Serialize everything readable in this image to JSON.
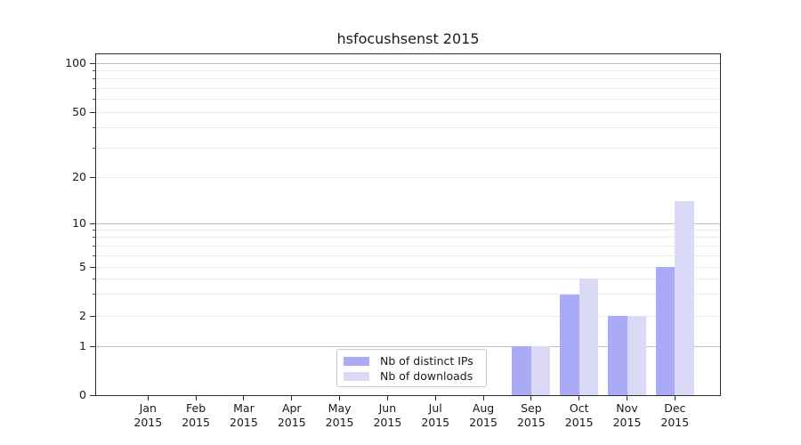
{
  "chart_data": {
    "type": "bar",
    "title": "hsfocushsenst 2015",
    "categories": [
      "Jan",
      "Feb",
      "Mar",
      "Apr",
      "May",
      "Jun",
      "Jul",
      "Aug",
      "Sep",
      "Oct",
      "Nov",
      "Dec"
    ],
    "x_tick_second_line": "2015",
    "series": [
      {
        "name": "Nb of distinct IPs",
        "color": "#abaaf6",
        "values": [
          0,
          0,
          0,
          0,
          0,
          0,
          0,
          0,
          1,
          3,
          2,
          5
        ]
      },
      {
        "name": "Nb of downloads",
        "color": "#dbdaf6",
        "values": [
          0,
          0,
          0,
          0,
          0,
          0,
          0,
          0,
          1,
          4,
          2,
          14
        ]
      }
    ],
    "y_axis": {
      "scale": "log-like (linear below 1)",
      "tick_labels": [
        100,
        50,
        20,
        10,
        5,
        2,
        1,
        0
      ],
      "major_grid_values": [
        1,
        10,
        100
      ],
      "minor_grid_values": [
        2,
        3,
        4,
        5,
        6,
        7,
        8,
        9,
        20,
        30,
        40,
        50,
        60,
        70,
        80,
        90
      ]
    },
    "legend": {
      "entries": [
        "Nb of distinct IPs",
        "Nb of downloads"
      ],
      "location": "bottom-center"
    },
    "grid": "horizontal only"
  },
  "colors": {
    "bar_distinct_ips": "#abaaf6",
    "bar_downloads": "#dbdaf6",
    "major_grid": "#bfbfbf",
    "minor_grid": "#ebebeb",
    "spine": "#2b2b2b",
    "legend_border": "#cccccc",
    "text": "#1a1a1a"
  }
}
